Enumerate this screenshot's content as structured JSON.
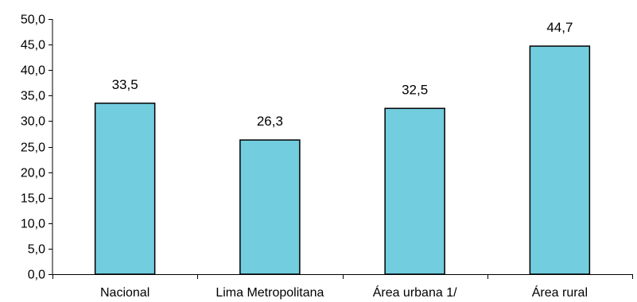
{
  "chart_data": {
    "type": "bar",
    "categories": [
      "Nacional",
      "Lima Metropolitana",
      "Área urbana 1/",
      "Área rural"
    ],
    "values": [
      33.5,
      26.3,
      32.5,
      44.7
    ],
    "data_labels": [
      "33,5",
      "26,3",
      "32,5",
      "44,7"
    ],
    "title": "",
    "xlabel": "",
    "ylabel": "",
    "ylim": [
      0,
      50
    ],
    "yticks": [
      0,
      5,
      10,
      15,
      20,
      25,
      30,
      35,
      40,
      45,
      50
    ],
    "ytick_labels": [
      "0,0",
      "5,0",
      "10,0",
      "15,0",
      "20,0",
      "25,0",
      "30,0",
      "35,0",
      "40,0",
      "45,0",
      "50,0"
    ],
    "grid": false,
    "legend": "none",
    "colors": {
      "bar_fill": "#72CDDF",
      "bar_stroke": "#000000",
      "axis": "#000000"
    }
  }
}
